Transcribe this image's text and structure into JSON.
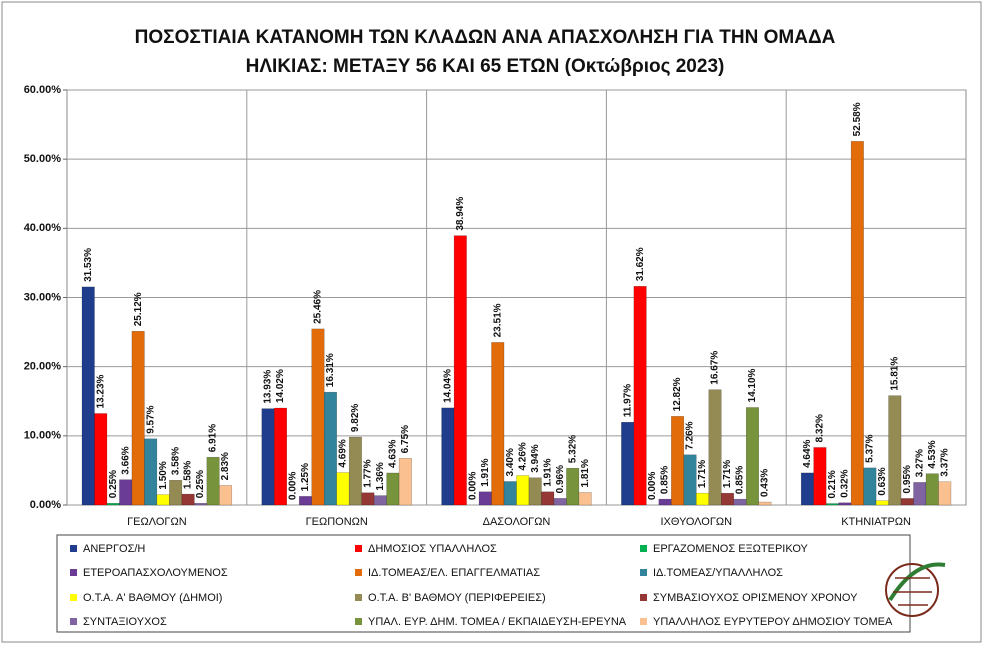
{
  "chart_data": {
    "type": "bar",
    "title": [
      "ΠΟΣΟΣΤΙΑΙΑ ΚΑΤΑΝΟΜΗ ΤΩΝ ΚΛΑΔΩΝ ΑΝΑ ΑΠΑΣΧΟΛΗΣΗ ΓΙΑ ΤΗΝ ΟΜΑΔΑ",
      "ΗΛΙΚΙΑΣ: ΜΕΤΑΞΥ 56 ΚΑΙ 65 ΕΤΩΝ (Οκτώβριος 2023)"
    ],
    "categories": [
      "ΓΕΩΛΟΓΩΝ",
      "ΓΕΩΠΟΝΩΝ",
      "ΔΑΣΟΛΟΓΩΝ",
      "ΙΧΘΥΟΛΟΓΩΝ",
      "ΚΤΗΝΙΑΤΡΩΝ"
    ],
    "ylim": [
      0,
      60
    ],
    "yticks": [
      {
        "value": 0,
        "label": "0.00%"
      },
      {
        "value": 10,
        "label": "10.00%"
      },
      {
        "value": 20,
        "label": "20.00%"
      },
      {
        "value": 30,
        "label": "30.00%"
      },
      {
        "value": 40,
        "label": "40.00%"
      },
      {
        "value": 50,
        "label": "50.00%"
      },
      {
        "value": 60,
        "label": "60.00%"
      }
    ],
    "grid": true,
    "legend": "bottom",
    "series": [
      {
        "name": "ΑΝΕΡΓΟΣ/Η",
        "color": "#1f3d8c",
        "values": [
          31.53,
          13.93,
          14.04,
          11.97,
          4.64
        ],
        "value_labels": [
          "31.53%",
          "13.93%",
          "14.04%",
          "11.97%",
          "4.64%"
        ]
      },
      {
        "name": "ΔΗΜΟΣΙΟΣ ΥΠΑΛΛΗΛΟΣ",
        "color": "#ff0000",
        "values": [
          13.23,
          14.02,
          38.94,
          31.62,
          8.32
        ],
        "value_labels": [
          "13.23%",
          "14.02%",
          "38.94%",
          "31.62%",
          "8.32%"
        ]
      },
      {
        "name": "ΕΡΓΑΖΟΜΕΝΟΣ  ΕΞΩΤΕΡΙΚΟΥ",
        "color": "#00b050",
        "values": [
          0.25,
          0,
          0,
          0,
          0.21
        ],
        "value_labels": [
          "0.25%",
          "0.00%",
          "0.00%",
          "0.00%",
          "0.21%"
        ]
      },
      {
        "name": "ΕΤΕΡΟΑΠΑΣΧΟΛΟΥΜΕΝΟΣ",
        "color": "#6a3c96",
        "values": [
          3.66,
          1.25,
          1.91,
          0.85,
          0.32
        ],
        "value_labels": [
          "3.66%",
          "1.25%",
          "1.91%",
          "0.85%",
          "0.32%"
        ]
      },
      {
        "name": "ΙΔ.ΤΟΜΕΑΣ/ΕΛ.  ΕΠΑΓΓΕΛΜΑΤΙΑΣ",
        "color": "#e36c0a",
        "values": [
          25.12,
          25.46,
          23.51,
          12.82,
          52.58
        ],
        "value_labels": [
          "25.12%",
          "25.46%",
          "23.51%",
          "12.82%",
          "52.58%"
        ]
      },
      {
        "name": "ΙΔ.ΤΟΜΕΑΣ/ΥΠΑΛΛΗΛΟΣ",
        "color": "#31849b",
        "values": [
          9.57,
          16.31,
          3.4,
          7.26,
          5.37
        ],
        "value_labels": [
          "9.57%",
          "16.31%",
          "3.40%",
          "7.26%",
          "5.37%"
        ]
      },
      {
        "name": "Ο.Τ.Α. Α' ΒΑΘΜΟΥ (ΔΗΜΟΙ)",
        "color": "#ffff00",
        "values": [
          1.5,
          4.69,
          4.26,
          1.71,
          0.63
        ],
        "value_labels": [
          "1.50%",
          "4.69%",
          "4.26%",
          "1.71%",
          "0.63%"
        ]
      },
      {
        "name": "Ο.Τ.Α. Β' ΒΑΘΜΟΥ (ΠΕΡΙΦΕΡΕΙΕΣ)",
        "color": "#948a54",
        "values": [
          3.58,
          9.82,
          3.94,
          16.67,
          15.81
        ],
        "value_labels": [
          "3.58%",
          "9.82%",
          "3.94%",
          "16.67%",
          "15.81%"
        ]
      },
      {
        "name": "ΣΥΜΒΑΣΙΟΥΧΟΣ  ΟΡΙΣΜΕΝΟΥ  ΧΡΟΝΟΥ",
        "color": "#953735",
        "values": [
          1.58,
          1.77,
          1.91,
          1.71,
          0.95
        ],
        "value_labels": [
          "1.58%",
          "1.77%",
          "1.91%",
          "1.71%",
          "0.95%"
        ]
      },
      {
        "name": "ΣΥΝΤΑΞΙΟΥΧΟΣ",
        "color": "#8064a2",
        "values": [
          0.25,
          1.36,
          0.96,
          0.85,
          3.27
        ],
        "value_labels": [
          "0.25%",
          "1.36%",
          "0.96%",
          "0.85%",
          "3.27%"
        ]
      },
      {
        "name": "ΥΠΑΛ. ΕΥΡ. ΔΗΜ. ΤΟΜΕΑ  / ΕΚΠΑΙΔΕΥΣΗ-ΕΡΕΥΝΑ",
        "color": "#77933c",
        "values": [
          6.91,
          4.63,
          5.32,
          14.1,
          4.53
        ],
        "value_labels": [
          "6.91%",
          "4.63%",
          "5.32%",
          "14.10%",
          "4.53%"
        ]
      },
      {
        "name": "ΥΠΑΛΛΗΛΟΣ ΕΥΡΥΤΕΡΟΥ ΔΗΜΟΣΙΟΥ ΤΟΜΕΑ",
        "color": "#fac08f",
        "values": [
          2.83,
          6.75,
          1.81,
          0.43,
          3.37
        ],
        "value_labels": [
          "2.83%",
          "6.75%",
          "1.81%",
          "0.43%",
          "3.37%"
        ]
      }
    ]
  }
}
